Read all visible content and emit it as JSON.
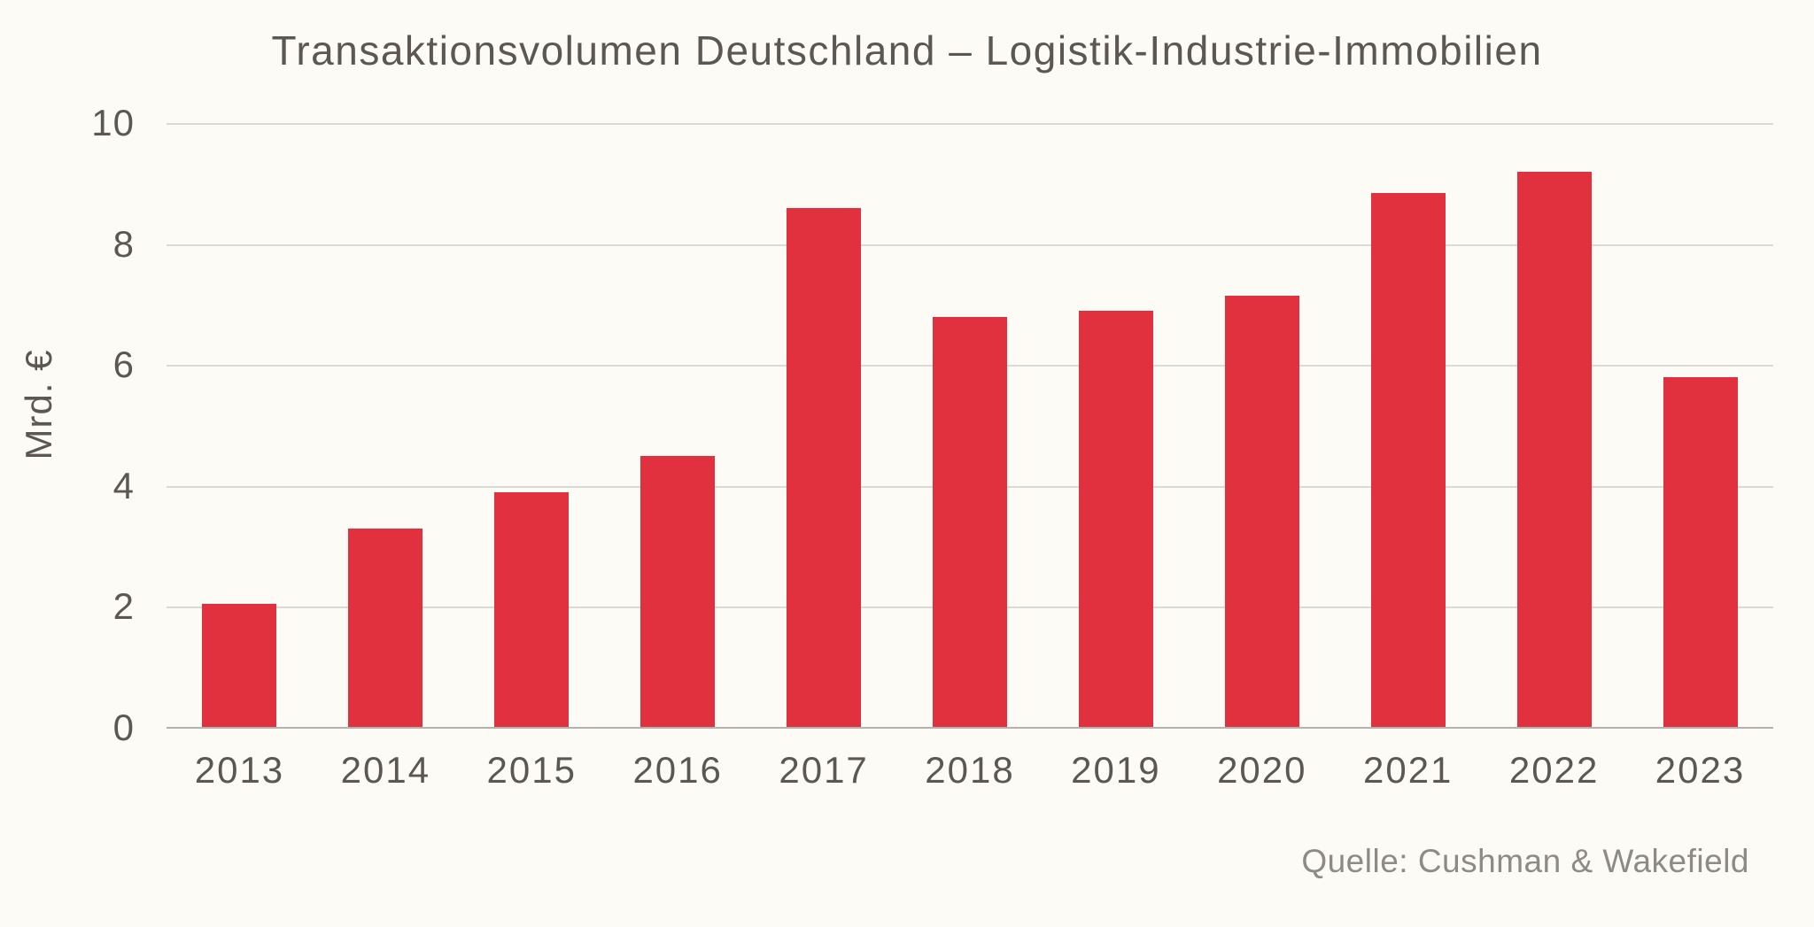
{
  "title": "Transaktionsvolumen Deutschland – Logistik-Industrie-Immobilien",
  "source_note": "Quelle: Cushman & Wakefield",
  "colors": {
    "bar": "#e1303e",
    "background": "#fdfbf6",
    "text_dark": "#5c5752",
    "text_muted": "#8e8a85",
    "gridline": "#dcd8d3",
    "axis_line": "#b5b1ac"
  },
  "chart_data": {
    "type": "bar",
    "title": "Transaktionsvolumen Deutschland – Logistik-Industrie-Immobilien",
    "xlabel": "",
    "ylabel": "Mrd. €",
    "categories": [
      "2013",
      "2014",
      "2015",
      "2016",
      "2017",
      "2018",
      "2019",
      "2020",
      "2021",
      "2022",
      "2023"
    ],
    "values": [
      2.05,
      3.3,
      3.9,
      4.5,
      8.6,
      6.8,
      6.9,
      7.15,
      8.85,
      9.2,
      5.8
    ],
    "ylim": [
      0,
      10
    ],
    "yticks": [
      0,
      2,
      4,
      6,
      8,
      10
    ],
    "grid": "horizontal",
    "legend": false,
    "source": "Quelle: Cushman & Wakefield"
  }
}
